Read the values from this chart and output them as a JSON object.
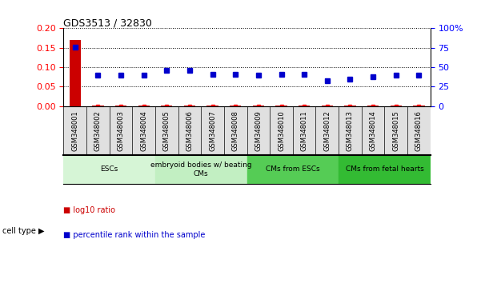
{
  "title": "GDS3513 / 32830",
  "samples": [
    "GSM348001",
    "GSM348002",
    "GSM348003",
    "GSM348004",
    "GSM348005",
    "GSM348006",
    "GSM348007",
    "GSM348008",
    "GSM348009",
    "GSM348010",
    "GSM348011",
    "GSM348012",
    "GSM348013",
    "GSM348014",
    "GSM348015",
    "GSM348016"
  ],
  "log10_ratio": [
    0.17,
    0.002,
    0.002,
    0.002,
    0.002,
    0.002,
    0.002,
    0.002,
    0.002,
    0.002,
    0.002,
    0.002,
    0.002,
    0.002,
    0.002,
    0.002
  ],
  "percentile_rank": [
    76,
    40,
    40,
    40,
    46,
    46,
    41,
    41,
    40,
    41,
    41,
    33,
    35,
    38,
    40,
    40
  ],
  "ylim_left": [
    0,
    0.2
  ],
  "ylim_right": [
    0,
    100
  ],
  "yticks_left": [
    0,
    0.05,
    0.1,
    0.15,
    0.2
  ],
  "yticks_right": [
    0,
    25,
    50,
    75,
    100
  ],
  "cell_type_groups": [
    {
      "label": "ESCs",
      "start": 0,
      "end": 3,
      "color": "#d6f5d6"
    },
    {
      "label": "embryoid bodies w/ beating\nCMs",
      "start": 4,
      "end": 7,
      "color": "#c2efc2"
    },
    {
      "label": "CMs from ESCs",
      "start": 8,
      "end": 11,
      "color": "#55cc55"
    },
    {
      "label": "CMs from fetal hearts",
      "start": 12,
      "end": 15,
      "color": "#33bb33"
    }
  ],
  "bar_color": "#cc0000",
  "dot_color": "#0000cc",
  "legend_items": [
    {
      "label": "log10 ratio",
      "color": "#cc0000"
    },
    {
      "label": "percentile rank within the sample",
      "color": "#0000cc"
    }
  ],
  "cell_type_label": "cell type"
}
